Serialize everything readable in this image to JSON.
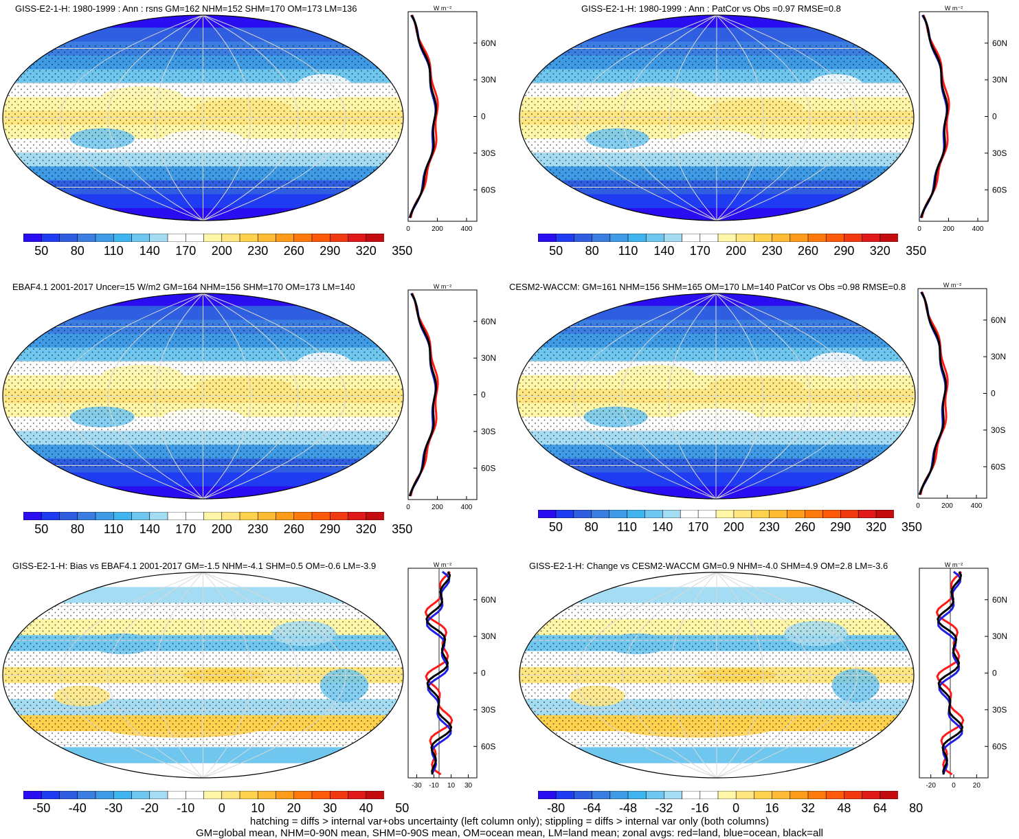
{
  "panels": [
    {
      "id": "model-climatology",
      "title": "GISS-E2-1-H: 1980-1999 : Ann : rsns GM=162 NHM=152 SHM=170 OM=173 LM=136",
      "kind": "mean",
      "hatching": true,
      "colorbar_labels": [
        "50",
        "80",
        "110",
        "140",
        "170",
        "200",
        "230",
        "260",
        "290",
        "320",
        "350"
      ],
      "zonal_ticks": [
        "0",
        "200",
        "400"
      ],
      "zonal_unit": "W m⁻²"
    },
    {
      "id": "model-patcor",
      "title": "GISS-E2-1-H: 1980-1999 : Ann : PatCor vs Obs =0.97 RMSE=0.8",
      "kind": "mean",
      "hatching": false,
      "colorbar_labels": [
        "50",
        "80",
        "110",
        "140",
        "170",
        "200",
        "230",
        "260",
        "290",
        "320",
        "350"
      ],
      "zonal_ticks": [
        "0",
        "200",
        "400"
      ],
      "zonal_unit": "W m⁻²"
    },
    {
      "id": "obs-climatology",
      "title": "EBAF4.1 2001-2017 Uncer=15 W/m2 GM=164 NHM=156 SHM=170 OM=173 LM=140",
      "kind": "mean",
      "hatching": true,
      "colorbar_labels": [
        "50",
        "80",
        "110",
        "140",
        "170",
        "200",
        "230",
        "260",
        "290",
        "320",
        "350"
      ],
      "zonal_ticks": [
        "0",
        "200",
        "400"
      ],
      "zonal_unit": "W m⁻²"
    },
    {
      "id": "reference-model",
      "title": "CESM2-WACCM: GM=161 NHM=156 SHM=165 OM=170 LM=140 PatCor vs Obs =0.98 RMSE=0.8",
      "kind": "mean",
      "hatching": false,
      "colorbar_labels": [
        "50",
        "80",
        "110",
        "140",
        "170",
        "200",
        "230",
        "260",
        "290",
        "320",
        "350"
      ],
      "zonal_ticks": [
        "0",
        "200",
        "400"
      ],
      "zonal_unit": "W m⁻²"
    },
    {
      "id": "bias-vs-obs",
      "title": "GISS-E2-1-H: Bias vs EBAF4.1 2001-2017 GM=-1.5 NHM=-4.1 SHM=0.5 OM=-0.6 LM=-3.9",
      "kind": "diff",
      "hatching": true,
      "colorbar_labels": [
        "-50",
        "-40",
        "-30",
        "-20",
        "-10",
        "0",
        "10",
        "20",
        "30",
        "40",
        "50"
      ],
      "zonal_ticks": [
        "-30",
        "-10",
        "10",
        "30"
      ],
      "zonal_unit": "W m⁻²"
    },
    {
      "id": "change-vs-reference",
      "title": "GISS-E2-1-H: Change vs CESM2-WACCM GM=0.9 NHM=-4.0 SHM=4.9 OM=2.8 LM=-3.6",
      "kind": "diff",
      "hatching": false,
      "colorbar_labels": [
        "-80",
        "-64",
        "-48",
        "-32",
        "-16",
        "0",
        "16",
        "32",
        "48",
        "64",
        "80"
      ],
      "zonal_ticks": [
        "-20",
        "0",
        "20"
      ],
      "zonal_unit": "W m⁻²"
    }
  ],
  "lat_labels": [
    "60N",
    "30N",
    "0",
    "30S",
    "60S"
  ],
  "colors": {
    "mean_scale": [
      "#2a0df0",
      "#1f3cf2",
      "#2f5fe0",
      "#3b7de0",
      "#3f9be6",
      "#3fb4ee",
      "#6fc6ee",
      "#a4dcf3",
      "#ffffff",
      "#ffffff",
      "#fff6a8",
      "#ffe680",
      "#ffd14d",
      "#ffbb33",
      "#ff9c1a",
      "#ff7a0d",
      "#ff5a0a",
      "#f23a10",
      "#e01818",
      "#c40b10"
    ],
    "diff_scale": [
      "#2a0df0",
      "#1f3cf2",
      "#2f5fe0",
      "#3b7de0",
      "#3f9be6",
      "#3fb4ee",
      "#6fc6ee",
      "#a4dcf3",
      "#ffffff",
      "#ffffff",
      "#fff6a8",
      "#ffe680",
      "#ffd14d",
      "#ffbb33",
      "#ff9c1a",
      "#ff7a0d",
      "#ff5a0a",
      "#f23a10",
      "#e01818",
      "#c40b10"
    ],
    "land_line": "#ff1a1a",
    "ocean_line": "#1f1fe6",
    "all_line": "#000000"
  },
  "footer": {
    "line1": "hatching = diffs > internal var+obs uncertainty (left column only); stippling = diffs > internal var only (both columns)",
    "line2": "GM=global mean, NHM=0-90N mean, SHM=0-90S mean, OM=ocean mean, LM=land mean; zonal avgs: red=land, blue=ocean, black=all"
  }
}
